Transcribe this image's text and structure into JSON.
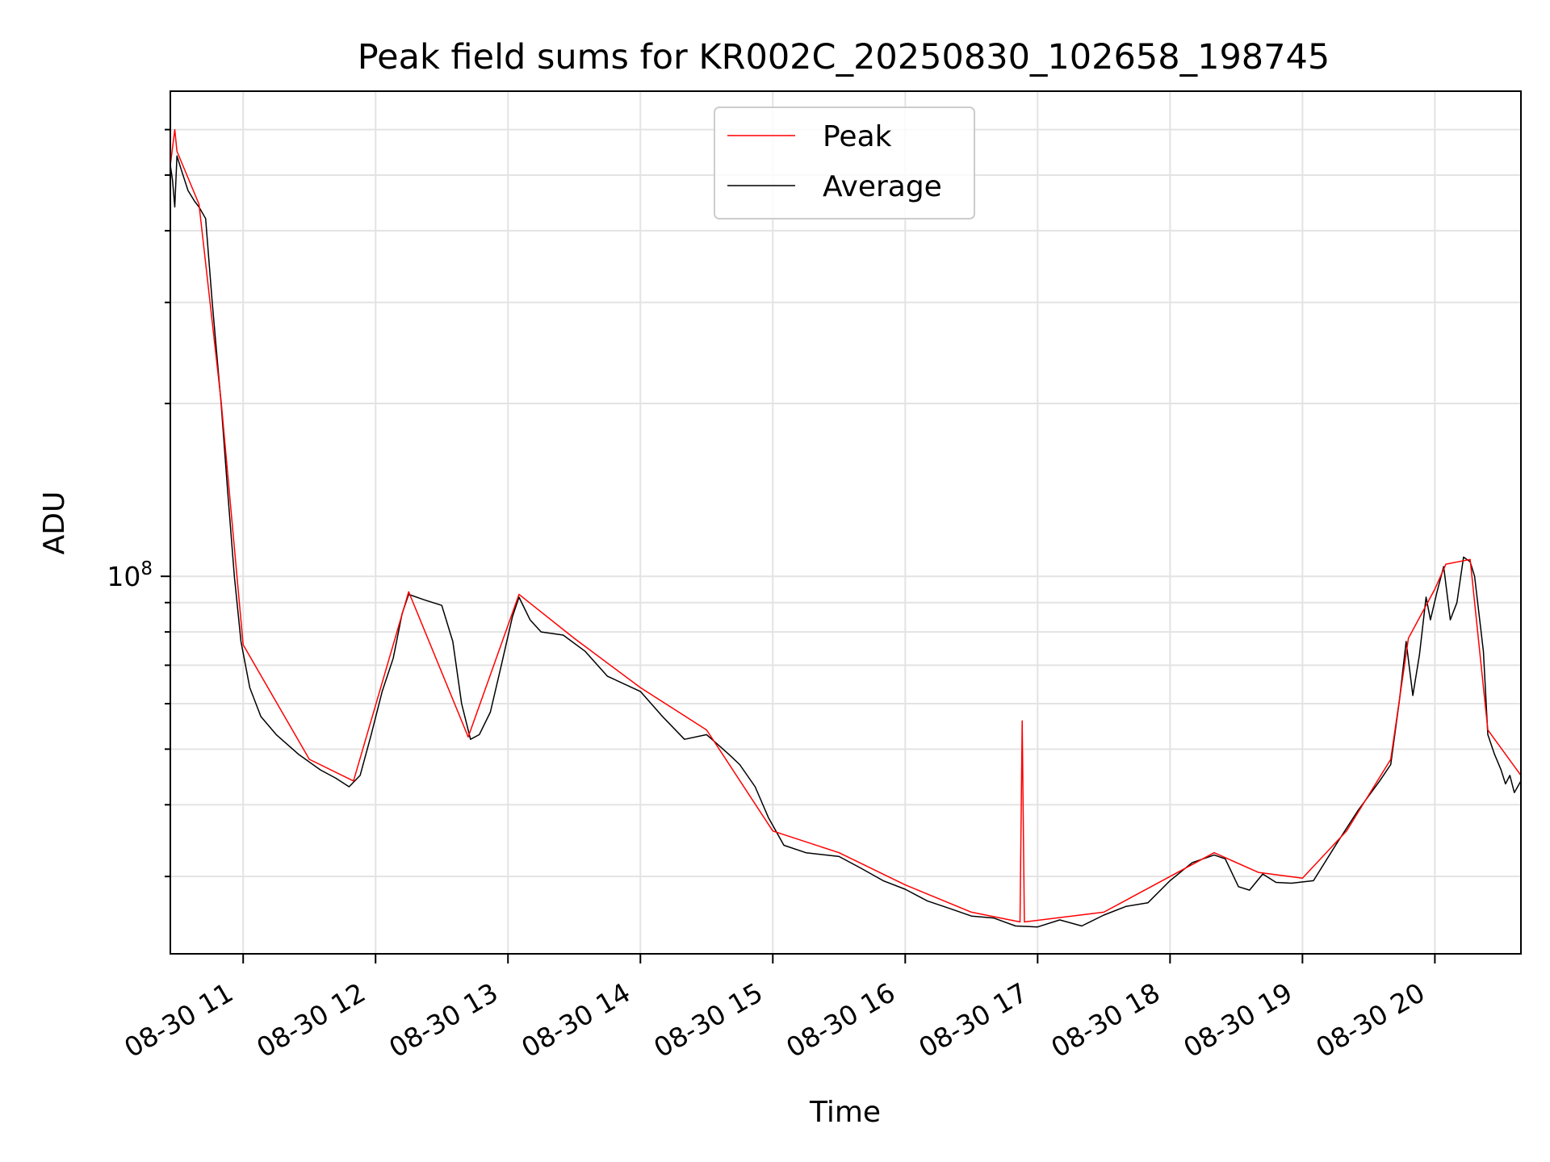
{
  "chart_data": {
    "type": "line",
    "title": "Peak field sums for KR002C_20250830_102658_198745",
    "xlabel": "Time",
    "ylabel": "ADU",
    "y_scale": "log",
    "y_tick_label_base": "10",
    "y_tick_label_exp": "8",
    "y_tick_value": 100000000,
    "ylim": [
      22000000,
      700000000
    ],
    "minor_y_ticks": [
      30000000,
      40000000,
      50000000,
      60000000,
      70000000,
      80000000,
      90000000,
      200000000,
      300000000,
      400000000,
      500000000,
      600000000
    ],
    "xlim": [
      "2025-08-30 10:27",
      "2025-08-30 20:39"
    ],
    "x_ticks": [
      {
        "value": "2025-08-30 11:00",
        "label": "08-30 11"
      },
      {
        "value": "2025-08-30 12:00",
        "label": "08-30 12"
      },
      {
        "value": "2025-08-30 13:00",
        "label": "08-30 13"
      },
      {
        "value": "2025-08-30 14:00",
        "label": "08-30 14"
      },
      {
        "value": "2025-08-30 15:00",
        "label": "08-30 15"
      },
      {
        "value": "2025-08-30 16:00",
        "label": "08-30 16"
      },
      {
        "value": "2025-08-30 17:00",
        "label": "08-30 17"
      },
      {
        "value": "2025-08-30 18:00",
        "label": "08-30 18"
      },
      {
        "value": "2025-08-30 19:00",
        "label": "08-30 19"
      },
      {
        "value": "2025-08-30 20:00",
        "label": "08-30 20"
      }
    ],
    "grid": true,
    "legend_position": "top-center",
    "series": [
      {
        "name": "Average",
        "color": "#000000",
        "points": [
          [
            "2025-08-30 10:27",
            520000000
          ],
          [
            "2025-08-30 10:28",
            490000000
          ],
          [
            "2025-08-30 10:29",
            440000000
          ],
          [
            "2025-08-30 10:30",
            540000000
          ],
          [
            "2025-08-30 10:32",
            510000000
          ],
          [
            "2025-08-30 10:35",
            470000000
          ],
          [
            "2025-08-30 10:38",
            450000000
          ],
          [
            "2025-08-30 10:40",
            440000000
          ],
          [
            "2025-08-30 10:43",
            420000000
          ],
          [
            "2025-08-30 10:46",
            300000000
          ],
          [
            "2025-08-30 10:50",
            200000000
          ],
          [
            "2025-08-30 10:53",
            140000000
          ],
          [
            "2025-08-30 10:56",
            100000000
          ],
          [
            "2025-08-30 10:59",
            77000000
          ],
          [
            "2025-08-30 11:03",
            64000000
          ],
          [
            "2025-08-30 11:08",
            57000000
          ],
          [
            "2025-08-30 11:15",
            53000000
          ],
          [
            "2025-08-30 11:25",
            49000000
          ],
          [
            "2025-08-30 11:35",
            46000000
          ],
          [
            "2025-08-30 11:42",
            44500000
          ],
          [
            "2025-08-30 11:48",
            43000000
          ],
          [
            "2025-08-30 11:53",
            45000000
          ],
          [
            "2025-08-30 11:58",
            53000000
          ],
          [
            "2025-08-30 12:03",
            63000000
          ],
          [
            "2025-08-30 12:08",
            72000000
          ],
          [
            "2025-08-30 12:12",
            86000000
          ],
          [
            "2025-08-30 12:15",
            93000000
          ],
          [
            "2025-08-30 12:22",
            91000000
          ],
          [
            "2025-08-30 12:30",
            89000000
          ],
          [
            "2025-08-30 12:35",
            77000000
          ],
          [
            "2025-08-30 12:39",
            60000000
          ],
          [
            "2025-08-30 12:43",
            52000000
          ],
          [
            "2025-08-30 12:47",
            53000000
          ],
          [
            "2025-08-30 12:52",
            58000000
          ],
          [
            "2025-08-30 12:57",
            70000000
          ],
          [
            "2025-08-30 13:02",
            85000000
          ],
          [
            "2025-08-30 13:05",
            92000000
          ],
          [
            "2025-08-30 13:10",
            84000000
          ],
          [
            "2025-08-30 13:15",
            80000000
          ],
          [
            "2025-08-30 13:25",
            79000000
          ],
          [
            "2025-08-30 13:35",
            74000000
          ],
          [
            "2025-08-30 13:45",
            67000000
          ],
          [
            "2025-08-30 14:00",
            63000000
          ],
          [
            "2025-08-30 14:10",
            57000000
          ],
          [
            "2025-08-30 14:20",
            52000000
          ],
          [
            "2025-08-30 14:30",
            53000000
          ],
          [
            "2025-08-30 14:40",
            49000000
          ],
          [
            "2025-08-30 14:45",
            47000000
          ],
          [
            "2025-08-30 14:52",
            43000000
          ],
          [
            "2025-08-30 14:58",
            38000000
          ],
          [
            "2025-08-30 15:05",
            34000000
          ],
          [
            "2025-08-30 15:15",
            33000000
          ],
          [
            "2025-08-30 15:30",
            32500000
          ],
          [
            "2025-08-30 15:40",
            31000000
          ],
          [
            "2025-08-30 15:50",
            29500000
          ],
          [
            "2025-08-30 16:00",
            28500000
          ],
          [
            "2025-08-30 16:10",
            27200000
          ],
          [
            "2025-08-30 16:20",
            26400000
          ],
          [
            "2025-08-30 16:30",
            25600000
          ],
          [
            "2025-08-30 16:40",
            25400000
          ],
          [
            "2025-08-30 16:50",
            24600000
          ],
          [
            "2025-08-30 17:00",
            24500000
          ],
          [
            "2025-08-30 17:10",
            25200000
          ],
          [
            "2025-08-30 17:20",
            24600000
          ],
          [
            "2025-08-30 17:30",
            25700000
          ],
          [
            "2025-08-30 17:40",
            26600000
          ],
          [
            "2025-08-30 17:50",
            27000000
          ],
          [
            "2025-08-30 18:00",
            29500000
          ],
          [
            "2025-08-30 18:10",
            31700000
          ],
          [
            "2025-08-30 18:20",
            32700000
          ],
          [
            "2025-08-30 18:25",
            32200000
          ],
          [
            "2025-08-30 18:31",
            28800000
          ],
          [
            "2025-08-30 18:36",
            28400000
          ],
          [
            "2025-08-30 18:42",
            30300000
          ],
          [
            "2025-08-30 18:48",
            29300000
          ],
          [
            "2025-08-30 18:55",
            29200000
          ],
          [
            "2025-08-30 19:05",
            29500000
          ],
          [
            "2025-08-30 19:15",
            34000000
          ],
          [
            "2025-08-30 19:25",
            39000000
          ],
          [
            "2025-08-30 19:35",
            44000000
          ],
          [
            "2025-08-30 19:40",
            47000000
          ],
          [
            "2025-08-30 19:44",
            61000000
          ],
          [
            "2025-08-30 19:47",
            77000000
          ],
          [
            "2025-08-30 19:50",
            62000000
          ],
          [
            "2025-08-30 19:53",
            73000000
          ],
          [
            "2025-08-30 19:56",
            92000000
          ],
          [
            "2025-08-30 19:58",
            84000000
          ],
          [
            "2025-08-30 20:01",
            94000000
          ],
          [
            "2025-08-30 20:04",
            104000000
          ],
          [
            "2025-08-30 20:07",
            84000000
          ],
          [
            "2025-08-30 20:10",
            90000000
          ],
          [
            "2025-08-30 20:13",
            108000000
          ],
          [
            "2025-08-30 20:16",
            106000000
          ],
          [
            "2025-08-30 20:18",
            100000000
          ],
          [
            "2025-08-30 20:22",
            74000000
          ],
          [
            "2025-08-30 20:24",
            53000000
          ],
          [
            "2025-08-30 20:27",
            49000000
          ],
          [
            "2025-08-30 20:30",
            46000000
          ],
          [
            "2025-08-30 20:32",
            43500000
          ],
          [
            "2025-08-30 20:34",
            45000000
          ],
          [
            "2025-08-30 20:36",
            42000000
          ],
          [
            "2025-08-30 20:39",
            44000000
          ]
        ]
      },
      {
        "name": "Peak",
        "color": "#ff0000",
        "points": [
          [
            "2025-08-30 10:27",
            520000000
          ],
          [
            "2025-08-30 10:29",
            600000000
          ],
          [
            "2025-08-30 10:30",
            550000000
          ],
          [
            "2025-08-30 10:40",
            445000000
          ],
          [
            "2025-08-30 10:50",
            202000000
          ],
          [
            "2025-08-30 11:00",
            76000000
          ],
          [
            "2025-08-30 11:30",
            48000000
          ],
          [
            "2025-08-30 11:50",
            44000000
          ],
          [
            "2025-08-30 12:15",
            94000000
          ],
          [
            "2025-08-30 12:42",
            52500000
          ],
          [
            "2025-08-30 13:05",
            93000000
          ],
          [
            "2025-08-30 13:30",
            78000000
          ],
          [
            "2025-08-30 14:00",
            64000000
          ],
          [
            "2025-08-30 14:30",
            54000000
          ],
          [
            "2025-08-30 15:00",
            36000000
          ],
          [
            "2025-08-30 15:30",
            33000000
          ],
          [
            "2025-08-30 16:00",
            29000000
          ],
          [
            "2025-08-30 16:30",
            26000000
          ],
          [
            "2025-08-30 16:52",
            25000000
          ],
          [
            "2025-08-30 16:53",
            56000000
          ],
          [
            "2025-08-30 16:54",
            25000000
          ],
          [
            "2025-08-30 17:30",
            26000000
          ],
          [
            "2025-08-30 18:00",
            30000000
          ],
          [
            "2025-08-30 18:20",
            33000000
          ],
          [
            "2025-08-30 18:40",
            30500000
          ],
          [
            "2025-08-30 19:00",
            29800000
          ],
          [
            "2025-08-30 19:20",
            36000000
          ],
          [
            "2025-08-30 19:40",
            48000000
          ],
          [
            "2025-08-30 19:48",
            78000000
          ],
          [
            "2025-08-30 20:00",
            95000000
          ],
          [
            "2025-08-30 20:05",
            105000000
          ],
          [
            "2025-08-30 20:16",
            107000000
          ],
          [
            "2025-08-30 20:24",
            54000000
          ],
          [
            "2025-08-30 20:39",
            45000000
          ]
        ]
      }
    ]
  }
}
